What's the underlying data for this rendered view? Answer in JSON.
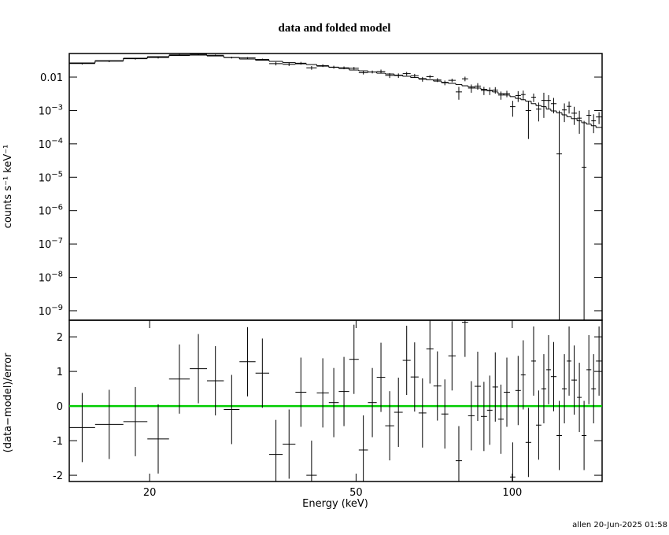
{
  "chart_data": [
    {
      "type": "spectrum",
      "title": "data and folded model",
      "ylabel": "counts s⁻¹ keV⁻¹",
      "log_y": true,
      "color": "#000000",
      "xlim": [
        14,
        149
      ],
      "ylim": [
        5.2e-10,
        0.051
      ],
      "yticks": [
        0.01,
        {
          "value": 0.001,
          "label": "10",
          "exponent": "−3"
        },
        {
          "value": 0.0001,
          "label": "10",
          "exponent": "−4"
        },
        {
          "value": 1e-05,
          "label": "10",
          "exponent": "−5"
        },
        {
          "value": 1e-06,
          "label": "10",
          "exponent": "−6"
        },
        {
          "value": 1e-07,
          "label": "10",
          "exponent": "−7"
        },
        {
          "value": 1e-08,
          "label": "10",
          "exponent": "−8"
        },
        {
          "value": 1e-09,
          "label": "10",
          "exponent": "−9"
        }
      ],
      "bin_edges": [
        14.0,
        15.7,
        17.8,
        19.8,
        21.8,
        23.9,
        25.8,
        27.8,
        29.8,
        32.0,
        34.0,
        36.1,
        38.2,
        40.1,
        42.0,
        44.3,
        46.3,
        48.5,
        50.6,
        52.7,
        54.8,
        56.9,
        59.2,
        61.5,
        63.7,
        66.0,
        68.3,
        70.5,
        73.0,
        75.3,
        77.8,
        80.0,
        82.2,
        84.6,
        87.0,
        89.4,
        91.6,
        93.9,
        96.3,
        99.0,
        101.4,
        103.9,
        106.1,
        108.8,
        111.1,
        113.8,
        116.3,
        118.7,
        121.7,
        124.7,
        127.4,
        130.0,
        133.3,
        136.1,
        139.0,
        142.0,
        145.0,
        149.0
      ],
      "values": [
        0.0255,
        0.03,
        0.0357,
        0.0386,
        0.0465,
        0.0485,
        0.045,
        0.0385,
        0.0375,
        0.0339,
        0.0254,
        0.0242,
        0.0261,
        0.019,
        0.0221,
        0.0199,
        0.019,
        0.0185,
        0.0135,
        0.0143,
        0.0148,
        0.0113,
        0.0112,
        0.0127,
        0.011,
        0.0087,
        0.0103,
        0.0082,
        0.0068,
        0.008,
        0.0036,
        0.0089,
        0.0047,
        0.0054,
        0.004,
        0.0039,
        0.0041,
        0.0029,
        0.0032,
        0.0013,
        0.0028,
        0.003,
        0.001,
        0.0025,
        0.0011,
        0.002,
        0.002,
        0.0016,
        5e-05,
        0.00104,
        0.00133,
        0.00083,
        0.00059,
        2e-05,
        0.00072,
        0.00049,
        0.00064
      ],
      "errors": [
        0.0016,
        0.0019,
        0.0022,
        0.0025,
        0.0027,
        0.0027,
        0.0026,
        0.0023,
        0.0021,
        0.0019,
        0.003,
        0.0027,
        0.0025,
        0.0024,
        0.0021,
        0.002,
        0.0018,
        0.0016,
        0.0015,
        0.0014,
        0.002,
        0.0019,
        0.0017,
        0.0016,
        0.0015,
        0.0014,
        0.0012,
        0.0011,
        0.0011,
        0.001,
        0.0015,
        0.0014,
        0.0013,
        0.0012,
        0.0011,
        0.001,
        0.0009,
        0.0008,
        0.0007,
        0.00065,
        0.001,
        0.00095,
        0.00086,
        0.00072,
        0.00063,
        0.0014,
        0.00088,
        0.00078,
        0.00094,
        0.00059,
        0.00052,
        0.00046,
        0.00039,
        0.00047,
        0.00031,
        0.00028,
        0.00025
      ],
      "model": [
        0.0265,
        0.031,
        0.0367,
        0.041,
        0.0444,
        0.0456,
        0.0431,
        0.0387,
        0.0348,
        0.0321,
        0.0296,
        0.0272,
        0.0251,
        0.0238,
        0.0213,
        0.0197,
        0.0182,
        0.0163,
        0.0154,
        0.0142,
        0.0131,
        0.0124,
        0.0115,
        0.0106,
        0.0097,
        0.009,
        0.0083,
        0.0076,
        0.007,
        0.0065,
        0.006,
        0.0055,
        0.0051,
        0.0047,
        0.0043,
        0.004,
        0.0036,
        0.0032,
        0.0029,
        0.0026,
        0.0023,
        0.0021,
        0.0019,
        0.0016,
        0.0014,
        0.0013,
        0.0011,
        0.00097,
        0.00085,
        0.00074,
        0.00065,
        0.00057,
        0.00049,
        0.00043,
        0.00039,
        0.00035,
        0.00031
      ]
    },
    {
      "type": "residual",
      "xlabel": "Energy (keV)",
      "ylabel": "(data−model)/error",
      "color": "#000000",
      "xlim": [
        14,
        149
      ],
      "xticks": [
        20,
        50,
        100
      ],
      "ylim": [
        -2.18,
        2.48
      ],
      "yticks": [
        -2,
        -1,
        0,
        1,
        2
      ],
      "bin_edges": [
        14.0,
        15.7,
        17.8,
        19.8,
        21.8,
        23.9,
        25.8,
        27.8,
        29.8,
        32.0,
        34.0,
        36.1,
        38.2,
        40.1,
        42.0,
        44.3,
        46.3,
        48.5,
        50.6,
        52.7,
        54.8,
        56.9,
        59.2,
        61.5,
        63.7,
        66.0,
        68.3,
        70.5,
        73.0,
        75.3,
        77.8,
        80.0,
        82.2,
        84.6,
        87.0,
        89.4,
        91.6,
        93.9,
        96.3,
        99.0,
        101.4,
        103.9,
        106.1,
        108.8,
        111.1,
        113.8,
        116.3,
        118.7,
        121.7,
        124.7,
        127.4,
        130.0,
        133.3,
        136.1,
        139.0,
        142.0,
        145.0,
        149.0
      ],
      "values": [
        -0.62,
        -0.53,
        -0.45,
        -0.95,
        0.78,
        1.08,
        0.73,
        -0.1,
        1.28,
        0.95,
        -1.4,
        -1.1,
        0.4,
        -2.0,
        0.38,
        0.1,
        0.42,
        1.35,
        -1.27,
        0.1,
        0.83,
        -0.57,
        -0.18,
        1.32,
        0.84,
        -0.2,
        1.65,
        0.58,
        -0.23,
        1.45,
        -1.58,
        2.42,
        -0.28,
        0.57,
        -0.3,
        -0.12,
        0.55,
        -0.38,
        0.4,
        -2.05,
        0.45,
        0.9,
        -1.05,
        1.3,
        -0.55,
        0.5,
        1.05,
        0.85,
        -0.85,
        0.5,
        1.3,
        0.75,
        0.25,
        -0.85,
        1.05,
        0.5,
        1.3
      ],
      "error": 1,
      "reference_line": 0,
      "reference_color": "#00cc00"
    }
  ],
  "footer": "allen 20-Jun-2025 01:58"
}
